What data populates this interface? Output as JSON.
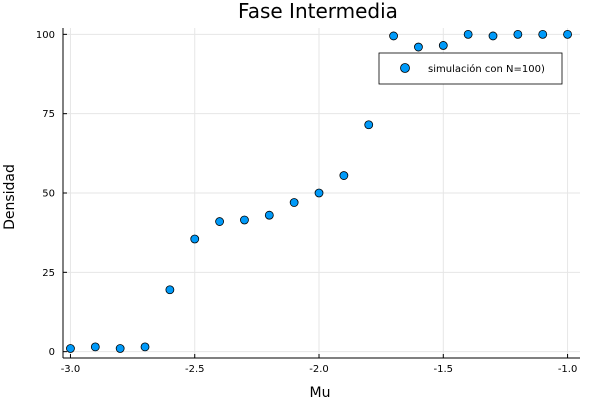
{
  "chart_data": {
    "type": "scatter",
    "title": "Fase Intermedia",
    "xlabel": "Mu",
    "ylabel": "Densidad",
    "xlim": [
      -3.03,
      -0.95
    ],
    "ylim": [
      -2,
      102
    ],
    "xticks": [
      -3.0,
      -2.5,
      -2.0,
      -1.5,
      -1.0
    ],
    "xtick_labels": [
      "-3.0",
      "-2.5",
      "-2.0",
      "-1.5",
      "-1.0"
    ],
    "yticks": [
      0,
      25,
      50,
      75,
      100
    ],
    "ytick_labels": [
      "0",
      "25",
      "50",
      "75",
      "100"
    ],
    "grid": true,
    "legend_position": "top-right",
    "series": [
      {
        "name": "simulación con N=100)",
        "color": "#009af9",
        "x": [
          -3.0,
          -2.9,
          -2.8,
          -2.7,
          -2.6,
          -2.5,
          -2.4,
          -2.3,
          -2.2,
          -2.1,
          -2.0,
          -1.9,
          -1.8,
          -1.7,
          -1.6,
          -1.5,
          -1.4,
          -1.3,
          -1.2,
          -1.1,
          -1.0
        ],
        "y": [
          1,
          1.5,
          1,
          1.5,
          19.5,
          35.5,
          41,
          41.5,
          43,
          47,
          50,
          55.5,
          71.5,
          99.5,
          96,
          96.5,
          100,
          99.5,
          100,
          100,
          100
        ]
      }
    ]
  }
}
